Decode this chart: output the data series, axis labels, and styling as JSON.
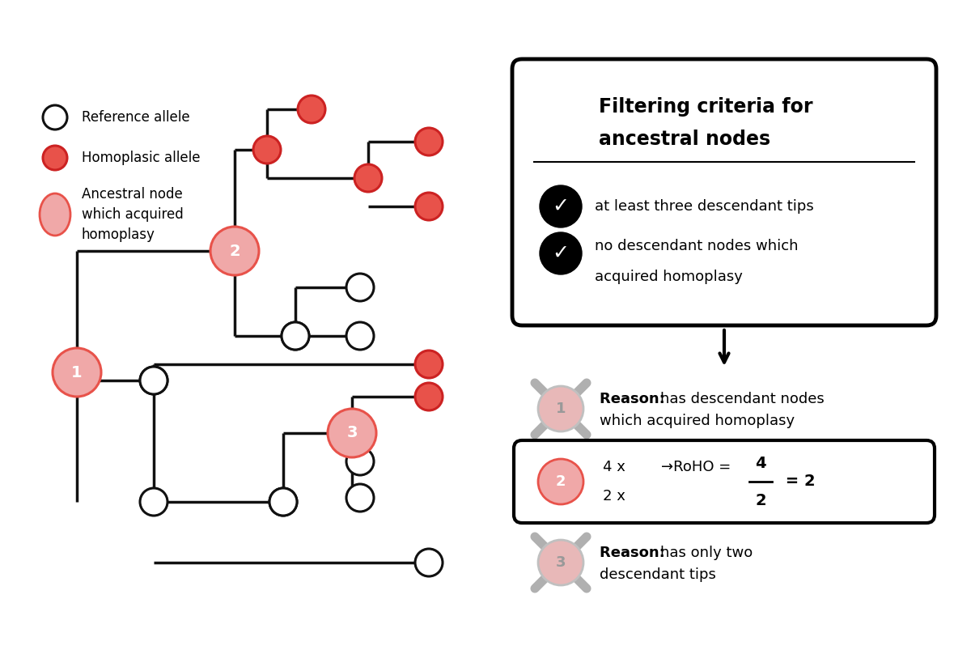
{
  "bg_color": "#ffffff",
  "tree_line_color": "#111111",
  "red_fill": "#e8524a",
  "red_border": "#cc2222",
  "pink_fill": "#f0a8a8",
  "pink_border": "#e8524a",
  "white_fill": "#ffffff",
  "legend": {
    "ref_label": "Reference allele",
    "homo_label": "Homoplasic allele",
    "anc_label": "Ancestral node\nwhich acquired\nhomoplasy"
  },
  "filter_box": {
    "title_line1": "Filtering criteria for",
    "title_line2": "ancestral nodes",
    "crit1": "at least three descendant tips",
    "crit2_line1": "no descendant nodes which",
    "crit2_line2": "acquired homoplasy"
  },
  "r1_reason_line1": "has descendant nodes",
  "r1_reason_line2": "which acquired homoplasy",
  "r3_reason_line1": "has only two",
  "r3_reason_line2": "descendant tips"
}
